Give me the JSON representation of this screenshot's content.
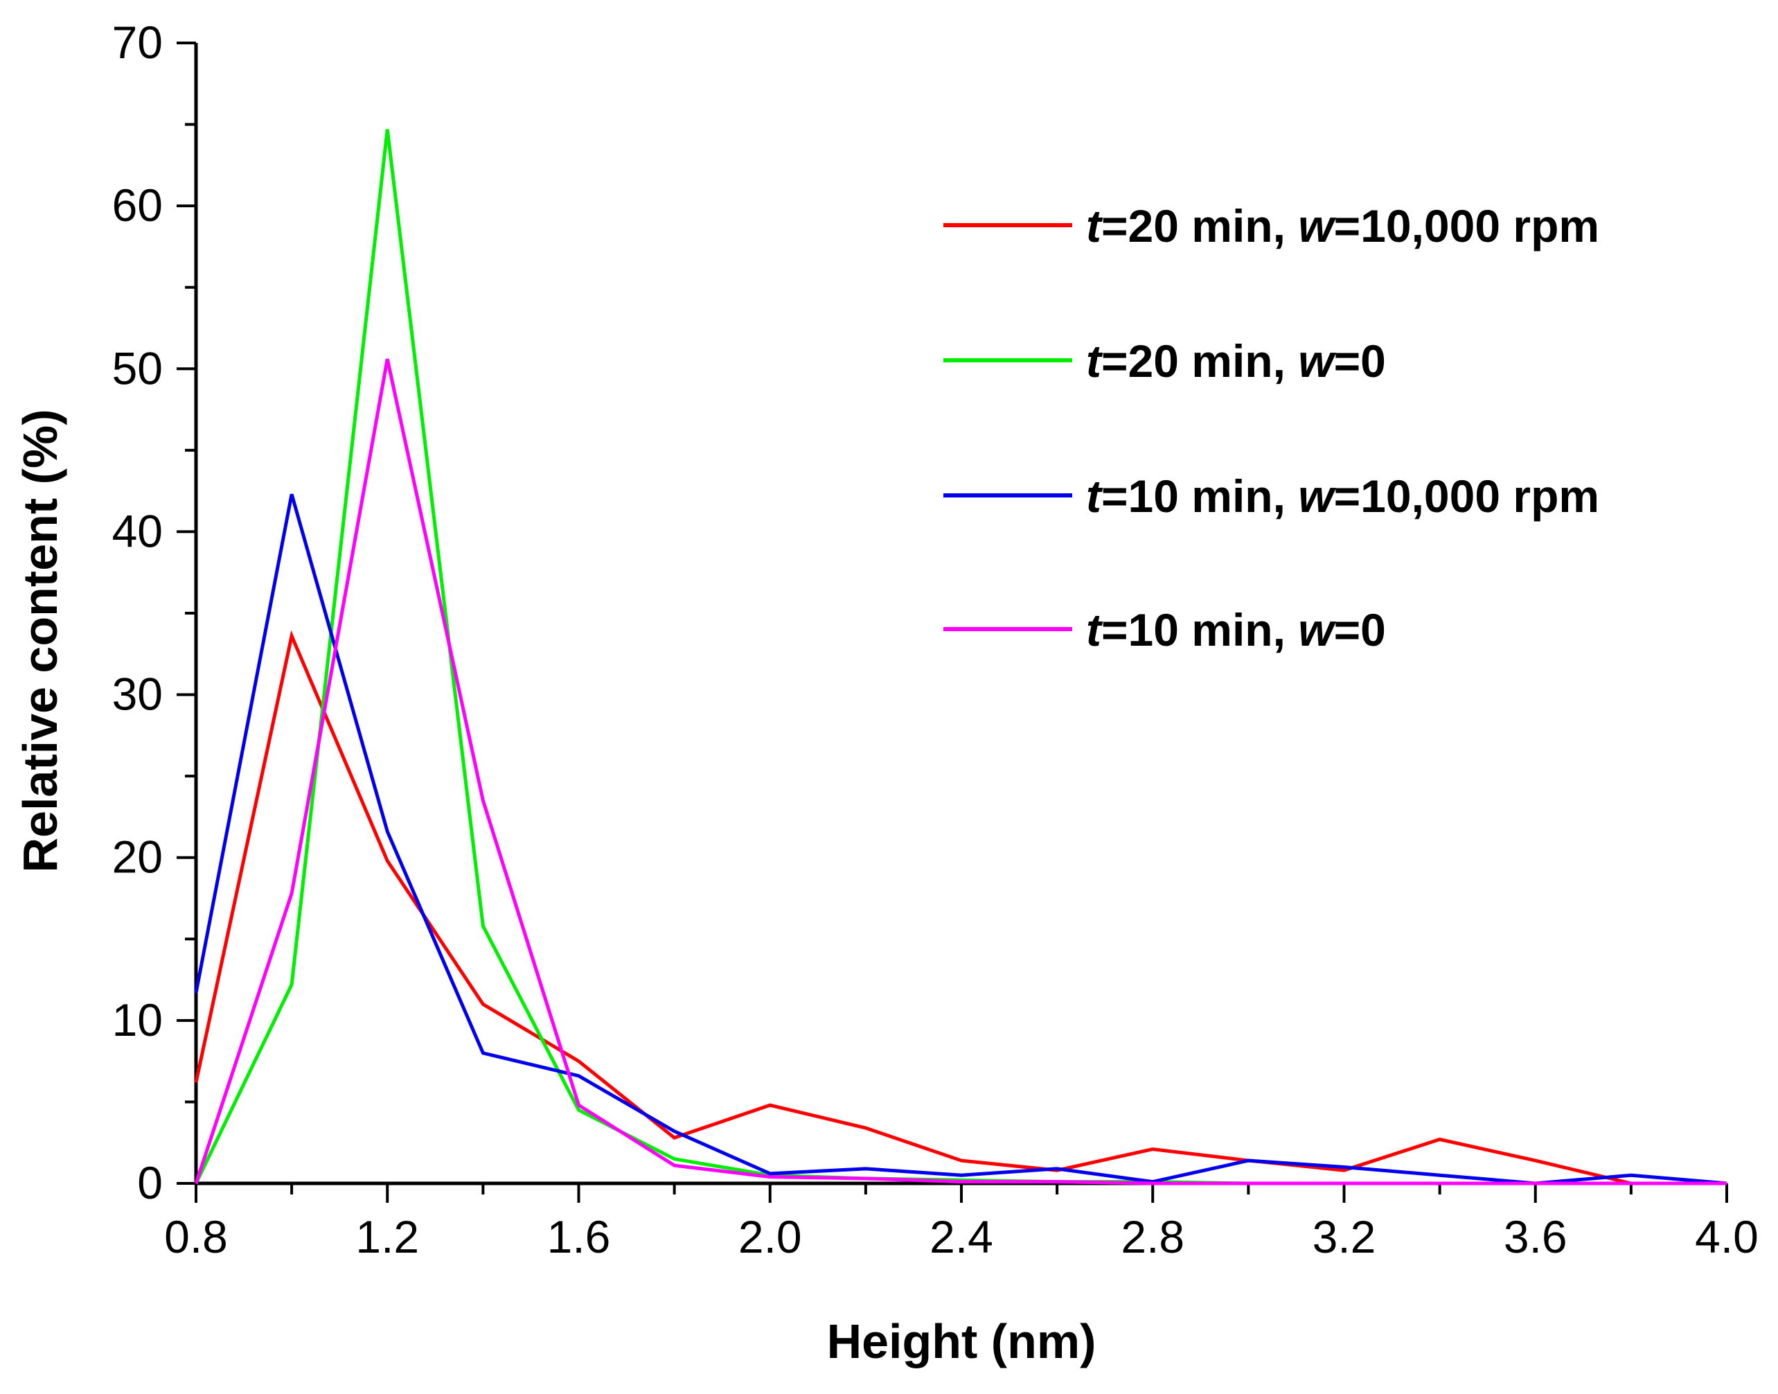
{
  "chart_data": {
    "type": "line",
    "xlabel": "Height (nm)",
    "ylabel": "Relative content (%)",
    "xlim": [
      0.8,
      4.0
    ],
    "ylim": [
      0,
      70
    ],
    "x_ticks": [
      "0.8",
      "1.2",
      "1.6",
      "2.0",
      "2.4",
      "2.8",
      "3.2",
      "3.6",
      "4.0"
    ],
    "y_ticks": [
      "0",
      "10",
      "20",
      "30",
      "40",
      "50",
      "60",
      "70"
    ],
    "grid": false,
    "legend_position": "top-right",
    "x": [
      0.8,
      1.0,
      1.2,
      1.4,
      1.6,
      1.8,
      2.0,
      2.2,
      2.4,
      2.6,
      2.8,
      3.0,
      3.2,
      3.4,
      3.6,
      3.8,
      4.0
    ],
    "series": [
      {
        "name": "t=20 min, w=10,000 rpm",
        "label_t": "t",
        "label_mid": "=20 min, ",
        "label_w": "w",
        "label_end": "=10,000 rpm",
        "color": "#ff0000",
        "values": [
          6.2,
          33.6,
          19.8,
          11.0,
          7.5,
          2.8,
          4.8,
          3.4,
          1.4,
          0.8,
          2.1,
          1.4,
          0.8,
          2.7,
          1.4,
          0.0,
          0.0
        ]
      },
      {
        "name": "t=20 min, w=0",
        "label_t": "t",
        "label_mid": "=20 min, ",
        "label_w": "w",
        "label_end": "=0",
        "color": "#00ee00",
        "values": [
          0.0,
          12.2,
          64.7,
          15.8,
          4.5,
          1.5,
          0.5,
          0.3,
          0.2,
          0.1,
          0.1,
          0.0,
          0.0,
          0.0,
          0.0,
          0.0,
          0.0
        ]
      },
      {
        "name": "t=10 min, w=10,000 rpm",
        "label_t": "t",
        "label_mid": "=10 min, ",
        "label_w": "w",
        "label_end": "=10,000 rpm",
        "color": "#0000ee",
        "values": [
          11.7,
          42.3,
          21.6,
          8.0,
          6.6,
          3.2,
          0.6,
          0.9,
          0.5,
          0.9,
          0.1,
          1.4,
          1.0,
          0.5,
          0.0,
          0.5,
          0.0
        ]
      },
      {
        "name": "t=10 min, w=0",
        "label_t": "t",
        "label_mid": "=10 min, ",
        "label_w": "w",
        "label_end": "=0",
        "color": "#ff00ff",
        "values": [
          0.0,
          17.8,
          50.6,
          23.5,
          4.8,
          1.1,
          0.4,
          0.3,
          0.1,
          0.1,
          0.0,
          0.0,
          0.0,
          0.0,
          0.0,
          0.0,
          0.0
        ]
      }
    ]
  }
}
